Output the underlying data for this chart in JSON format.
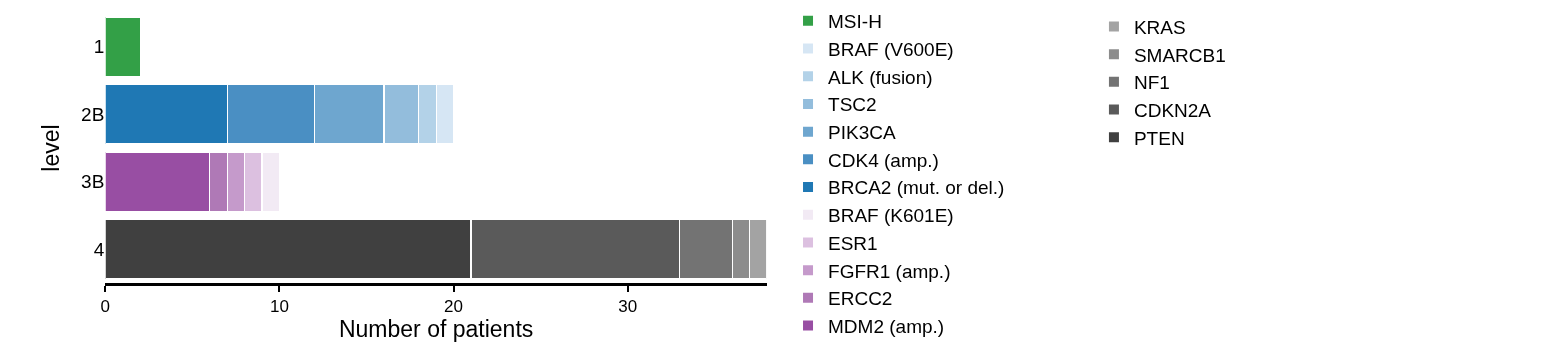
{
  "chart_data": {
    "type": "bar",
    "orientation": "horizontal",
    "stacked": true,
    "categories": [
      "1",
      "2B",
      "3B",
      "4"
    ],
    "xlabel": "Number of patients",
    "ylabel": "level",
    "xlim": [
      0,
      38
    ],
    "xticks": [
      0,
      10,
      20,
      30
    ],
    "legend": "right",
    "series": [
      {
        "name": "MSI-H",
        "color": "#33a047",
        "values": [
          2,
          null,
          null,
          null
        ]
      },
      {
        "name": "BRCA2 (mut. or del.)",
        "color": "#1f78b4",
        "values": [
          null,
          7,
          null,
          null
        ]
      },
      {
        "name": "CDK4 (amp.)",
        "color": "#4a8fc3",
        "values": [
          null,
          5,
          null,
          null
        ]
      },
      {
        "name": "PIK3CA",
        "color": "#6ea6cf",
        "values": [
          null,
          4,
          null,
          null
        ]
      },
      {
        "name": "TSC2",
        "color": "#93bddc",
        "values": [
          null,
          2,
          null,
          null
        ]
      },
      {
        "name": "ALK (fusion)",
        "color": "#b3d2e8",
        "values": [
          null,
          1,
          null,
          null
        ]
      },
      {
        "name": "BRAF (V600E)",
        "color": "#d6e6f4",
        "values": [
          null,
          1,
          null,
          null
        ]
      },
      {
        "name": "MDM2 (amp.)",
        "color": "#984ea3",
        "values": [
          null,
          null,
          6,
          null
        ]
      },
      {
        "name": "ERCC2",
        "color": "#af79b6",
        "values": [
          null,
          null,
          1,
          null
        ]
      },
      {
        "name": "FGFR1 (amp.)",
        "color": "#c59acb",
        "values": [
          null,
          null,
          1,
          null
        ]
      },
      {
        "name": "ESR1",
        "color": "#dcc0e0",
        "values": [
          null,
          null,
          1,
          null
        ]
      },
      {
        "name": "BRAF (K601E)",
        "color": "#f2eaf4",
        "values": [
          null,
          null,
          1,
          null
        ]
      },
      {
        "name": "PTEN",
        "color": "#404040",
        "values": [
          null,
          null,
          null,
          21
        ]
      },
      {
        "name": "CDKN2A",
        "color": "#5a5a5a",
        "values": [
          null,
          null,
          null,
          12
        ]
      },
      {
        "name": "NF1",
        "color": "#737373",
        "values": [
          null,
          null,
          null,
          3
        ]
      },
      {
        "name": "SMARCB1",
        "color": "#8c8c8c",
        "values": [
          null,
          null,
          null,
          1
        ]
      },
      {
        "name": "KRAS",
        "color": "#a3a3a3",
        "values": [
          null,
          null,
          null,
          1
        ]
      }
    ]
  }
}
